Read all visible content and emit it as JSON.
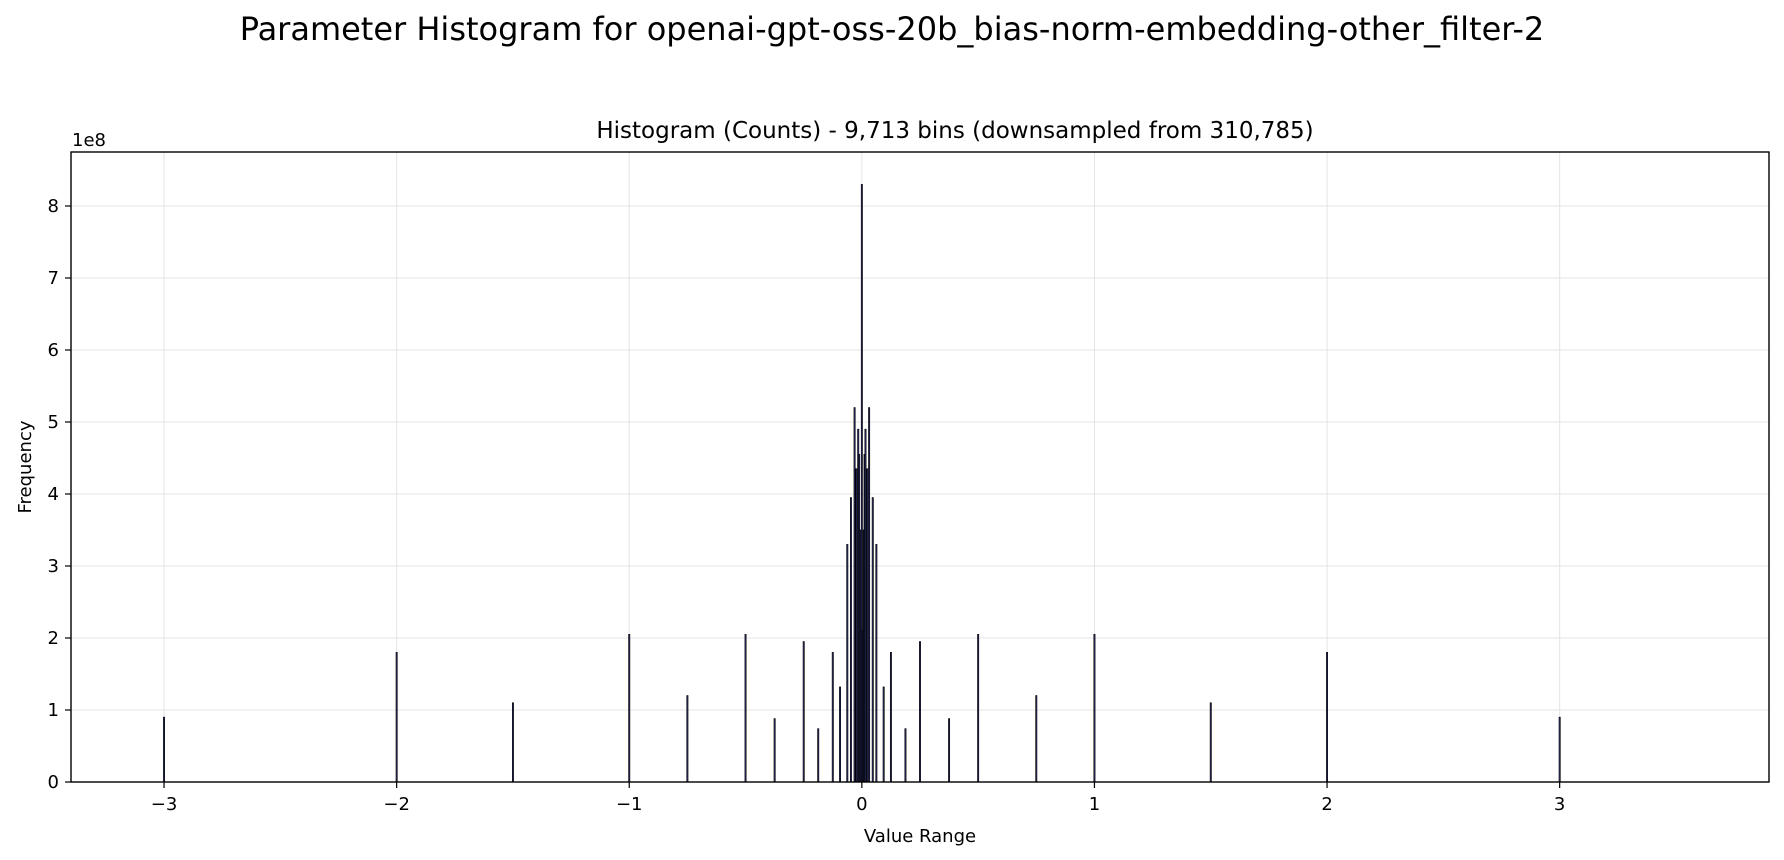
{
  "figure": {
    "suptitle": "Parameter Histogram for openai-gpt-oss-20b_bias-norm-embedding-other_filter-2"
  },
  "chart_data": {
    "type": "bar",
    "title": "Histogram (Counts) - 9,713 bins (downsampled from 310,785)",
    "xlabel": "Value Range",
    "ylabel": "Frequency",
    "y_offset_label": "1e8",
    "xlim": [
      -3.4,
      3.9
    ],
    "ylim": [
      0,
      8.75
    ],
    "y_scale": 100000000,
    "x_ticks": [
      -3,
      -2,
      -1,
      0,
      1,
      2,
      3
    ],
    "x_tick_labels": [
      "−3",
      "−2",
      "−1",
      "0",
      "1",
      "2",
      "3"
    ],
    "y_ticks": [
      0,
      1,
      2,
      3,
      4,
      5,
      6,
      7,
      8
    ],
    "y_tick_labels": [
      "0",
      "1",
      "2",
      "3",
      "4",
      "5",
      "6",
      "7",
      "8"
    ],
    "grid": true,
    "bar_color": "#3b3f8f",
    "bars": [
      {
        "x": -3.0,
        "y": 0.9
      },
      {
        "x": -2.0,
        "y": 1.8
      },
      {
        "x": -1.5,
        "y": 1.1
      },
      {
        "x": -1.0,
        "y": 2.05
      },
      {
        "x": -0.75,
        "y": 1.2
      },
      {
        "x": -0.5,
        "y": 2.05
      },
      {
        "x": -0.375,
        "y": 0.88
      },
      {
        "x": -0.25,
        "y": 1.95
      },
      {
        "x": -0.1875,
        "y": 0.74
      },
      {
        "x": -0.125,
        "y": 1.8
      },
      {
        "x": -0.09375,
        "y": 1.32
      },
      {
        "x": -0.0625,
        "y": 3.3
      },
      {
        "x": -0.046875,
        "y": 3.95
      },
      {
        "x": -0.03125,
        "y": 5.2
      },
      {
        "x": -0.0234375,
        "y": 4.35
      },
      {
        "x": -0.015625,
        "y": 4.9
      },
      {
        "x": -0.01171875,
        "y": 4.55
      },
      {
        "x": -0.0078125,
        "y": 3.5
      },
      {
        "x": -0.00390625,
        "y": 2.1
      },
      {
        "x": 0.0,
        "y": 8.3
      },
      {
        "x": 0.00390625,
        "y": 2.1
      },
      {
        "x": 0.0078125,
        "y": 3.5
      },
      {
        "x": 0.01171875,
        "y": 4.55
      },
      {
        "x": 0.015625,
        "y": 4.9
      },
      {
        "x": 0.0234375,
        "y": 4.35
      },
      {
        "x": 0.03125,
        "y": 5.2
      },
      {
        "x": 0.046875,
        "y": 3.95
      },
      {
        "x": 0.0625,
        "y": 3.3
      },
      {
        "x": 0.09375,
        "y": 1.32
      },
      {
        "x": 0.125,
        "y": 1.8
      },
      {
        "x": 0.1875,
        "y": 0.74
      },
      {
        "x": 0.25,
        "y": 1.95
      },
      {
        "x": 0.375,
        "y": 0.88
      },
      {
        "x": 0.5,
        "y": 2.05
      },
      {
        "x": 0.75,
        "y": 1.2
      },
      {
        "x": 1.0,
        "y": 2.05
      },
      {
        "x": 1.5,
        "y": 1.1
      },
      {
        "x": 2.0,
        "y": 1.8
      },
      {
        "x": 3.0,
        "y": 0.9
      }
    ]
  }
}
